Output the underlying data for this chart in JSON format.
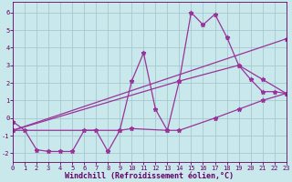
{
  "background_color": "#c8e8ec",
  "grid_color": "#a8c8d0",
  "line_color": "#993399",
  "marker_style": "*",
  "marker_size": 3.5,
  "linewidth": 0.9,
  "xlabel": "Windchill (Refroidissement éolien,°C)",
  "xlabel_fontsize": 6,
  "xlabel_color": "#660066",
  "tick_color": "#660066",
  "tick_fontsize": 5,
  "xlim": [
    0,
    23
  ],
  "ylim": [
    -2.5,
    6.6
  ],
  "yticks": [
    -2,
    -1,
    0,
    1,
    2,
    3,
    4,
    5,
    6
  ],
  "xticks": [
    0,
    1,
    2,
    3,
    4,
    5,
    6,
    7,
    8,
    9,
    10,
    11,
    12,
    13,
    14,
    15,
    16,
    17,
    18,
    19,
    20,
    21,
    22,
    23
  ],
  "lines": [
    {
      "x": [
        0,
        1,
        2,
        3,
        4,
        5,
        6,
        7,
        8,
        9,
        10,
        11,
        12,
        13,
        14,
        15,
        16,
        17,
        18,
        19,
        20,
        21,
        22,
        23
      ],
      "y": [
        -0.2,
        -0.7,
        -1.8,
        -1.9,
        -1.9,
        -1.9,
        -0.7,
        -0.7,
        -1.9,
        -0.7,
        2.1,
        3.7,
        0.5,
        -0.7,
        2.1,
        6.0,
        5.3,
        5.9,
        4.6,
        3.0,
        2.2,
        1.5,
        1.5,
        1.4
      ]
    },
    {
      "x": [
        0,
        14,
        19,
        21,
        23
      ],
      "y": [
        -0.7,
        2.1,
        3.0,
        2.2,
        1.4
      ]
    },
    {
      "x": [
        0,
        23
      ],
      "y": [
        -0.7,
        4.5
      ]
    },
    {
      "x": [
        0,
        9,
        10,
        13,
        14,
        17,
        19,
        21,
        23
      ],
      "y": [
        -0.7,
        -0.7,
        -0.6,
        -0.7,
        -0.7,
        0.0,
        0.5,
        1.0,
        1.4
      ]
    }
  ]
}
